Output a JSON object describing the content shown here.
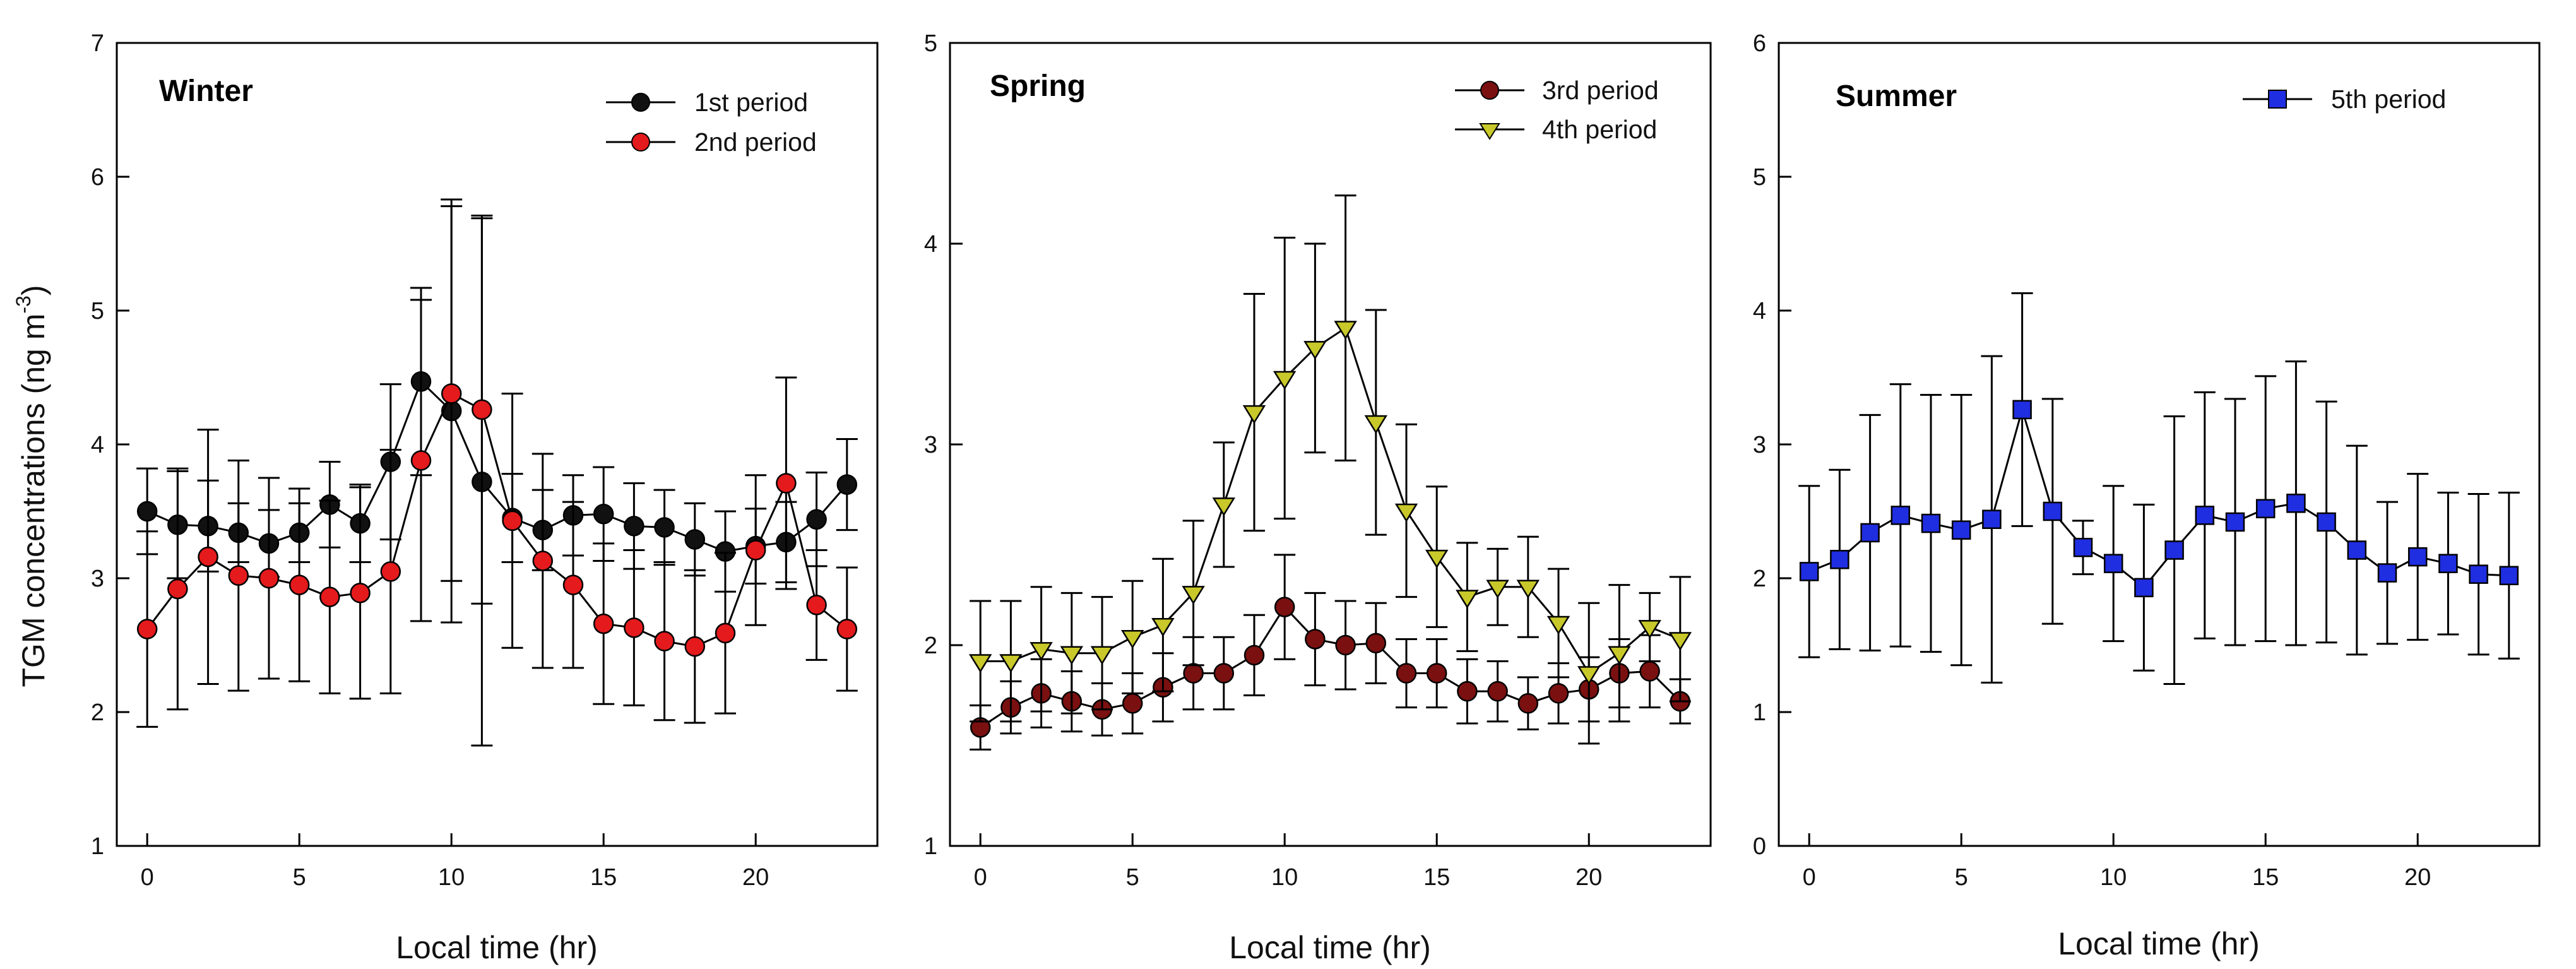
{
  "colors": {
    "series_1st": "#111111",
    "series_2nd": "#e41a1c",
    "series_3rd": "#7a1010",
    "series_4th": "#c8c82a",
    "series_5th": "#1f2ee0",
    "axis": "#000000"
  },
  "shared": {
    "ylabel_main": "TGM concentrations  (ng m",
    "ylabel_sup": "-3",
    "ylabel_close": ")"
  },
  "chart_data": [
    {
      "type": "line",
      "title": "Winter",
      "xlabel": "Local time (hr)",
      "ylabel": "TGM concentrations (ng m-3)",
      "xlim": [
        -1,
        24
      ],
      "ylim": [
        1,
        7
      ],
      "xticks": [
        0,
        5,
        10,
        15,
        20
      ],
      "yticks": [
        1,
        2,
        3,
        4,
        5,
        6,
        7
      ],
      "legend": "top-right",
      "x": [
        0,
        1,
        2,
        3,
        4,
        5,
        6,
        7,
        8,
        9,
        10,
        11,
        12,
        13,
        14,
        15,
        16,
        17,
        18,
        19,
        20,
        21,
        22,
        23
      ],
      "series": [
        {
          "name": "1st period",
          "marker": "circle",
          "color_key": "series_1st",
          "values": [
            3.5,
            3.4,
            3.39,
            3.34,
            3.26,
            3.34,
            3.55,
            3.41,
            3.87,
            4.47,
            4.25,
            3.72,
            3.45,
            3.36,
            3.47,
            3.48,
            3.39,
            3.38,
            3.29,
            3.2,
            3.24,
            3.27,
            3.44,
            3.7
          ],
          "errors": [
            0.32,
            0.4,
            0.34,
            0.22,
            0.25,
            0.22,
            0.32,
            0.29,
            0.58,
            0.7,
            1.58,
            1.97,
            0.33,
            0.3,
            0.3,
            0.35,
            0.32,
            0.28,
            0.27,
            0.3,
            0.28,
            0.3,
            0.35,
            0.34
          ]
        },
        {
          "name": "2nd period",
          "marker": "circle",
          "color_key": "series_2nd",
          "values": [
            2.62,
            2.92,
            3.16,
            3.02,
            3.0,
            2.95,
            2.86,
            2.89,
            3.05,
            3.88,
            4.38,
            4.26,
            3.43,
            3.13,
            2.95,
            2.66,
            2.63,
            2.53,
            2.49,
            2.59,
            3.21,
            3.71,
            2.8,
            2.62
          ],
          "errors": [
            0.73,
            0.9,
            0.95,
            0.86,
            0.75,
            0.72,
            0.72,
            0.79,
            0.91,
            1.2,
            1.4,
            1.45,
            0.95,
            0.8,
            0.62,
            0.6,
            0.58,
            0.59,
            0.57,
            0.6,
            0.56,
            0.79,
            0.41,
            0.46
          ]
        }
      ]
    },
    {
      "type": "line",
      "title": "Spring",
      "xlabel": "Local time (hr)",
      "ylabel": "",
      "xlim": [
        -1,
        24
      ],
      "ylim": [
        1,
        5
      ],
      "xticks": [
        0,
        5,
        10,
        15,
        20
      ],
      "yticks": [
        1,
        2,
        3,
        4,
        5
      ],
      "legend": "top-right",
      "x": [
        0,
        1,
        2,
        3,
        4,
        5,
        6,
        7,
        8,
        9,
        10,
        11,
        12,
        13,
        14,
        15,
        16,
        17,
        18,
        19,
        20,
        21,
        22,
        23
      ],
      "series": [
        {
          "name": "3rd period",
          "marker": "circle",
          "color_key": "series_3rd",
          "values": [
            1.59,
            1.69,
            1.76,
            1.72,
            1.68,
            1.71,
            1.79,
            1.86,
            1.86,
            1.95,
            2.19,
            2.03,
            2.0,
            2.01,
            1.86,
            1.86,
            1.77,
            1.77,
            1.71,
            1.76,
            1.78,
            1.86,
            1.87,
            1.72
          ],
          "errors": [
            0.11,
            0.13,
            0.17,
            0.15,
            0.13,
            0.15,
            0.17,
            0.18,
            0.18,
            0.2,
            0.26,
            0.23,
            0.22,
            0.2,
            0.17,
            0.17,
            0.16,
            0.15,
            0.13,
            0.15,
            0.16,
            0.17,
            0.18,
            0.11
          ]
        },
        {
          "name": "4th period",
          "marker": "triangle-down",
          "color_key": "series_4th",
          "values": [
            1.92,
            1.92,
            1.98,
            1.96,
            1.96,
            2.04,
            2.1,
            2.26,
            2.7,
            3.16,
            3.33,
            3.48,
            3.58,
            3.11,
            2.67,
            2.44,
            2.24,
            2.29,
            2.29,
            2.11,
            1.86,
            1.96,
            2.09,
            2.03
          ],
          "errors": [
            0.3,
            0.3,
            0.31,
            0.3,
            0.28,
            0.28,
            0.33,
            0.36,
            0.31,
            0.59,
            0.7,
            0.52,
            0.66,
            0.56,
            0.43,
            0.35,
            0.27,
            0.19,
            0.25,
            0.27,
            0.35,
            0.34,
            0.17,
            0.31
          ]
        }
      ]
    },
    {
      "type": "line",
      "title": "Summer",
      "xlabel": "Local time (hr)",
      "ylabel": "",
      "xlim": [
        -1,
        24
      ],
      "ylim": [
        0,
        6
      ],
      "xticks": [
        0,
        5,
        10,
        15,
        20
      ],
      "yticks": [
        0,
        1,
        2,
        3,
        4,
        5,
        6
      ],
      "legend": "top-right",
      "x": [
        0,
        1,
        2,
        3,
        4,
        5,
        6,
        7,
        8,
        9,
        10,
        11,
        12,
        13,
        14,
        15,
        16,
        17,
        18,
        19,
        20,
        21,
        22,
        23
      ],
      "series": [
        {
          "name": "5th period",
          "marker": "square",
          "color_key": "series_5th",
          "values": [
            2.05,
            2.14,
            2.34,
            2.47,
            2.41,
            2.36,
            2.44,
            3.26,
            2.5,
            2.23,
            2.11,
            1.93,
            2.21,
            2.47,
            2.42,
            2.52,
            2.56,
            2.42,
            2.21,
            2.04,
            2.16,
            2.11,
            2.03,
            2.02
          ],
          "errors": [
            0.64,
            0.67,
            0.88,
            0.98,
            0.96,
            1.01,
            1.22,
            0.87,
            0.84,
            0.2,
            0.58,
            0.62,
            1.0,
            0.92,
            0.92,
            0.99,
            1.06,
            0.9,
            0.78,
            0.53,
            0.62,
            0.53,
            0.6,
            0.62
          ]
        }
      ]
    }
  ]
}
